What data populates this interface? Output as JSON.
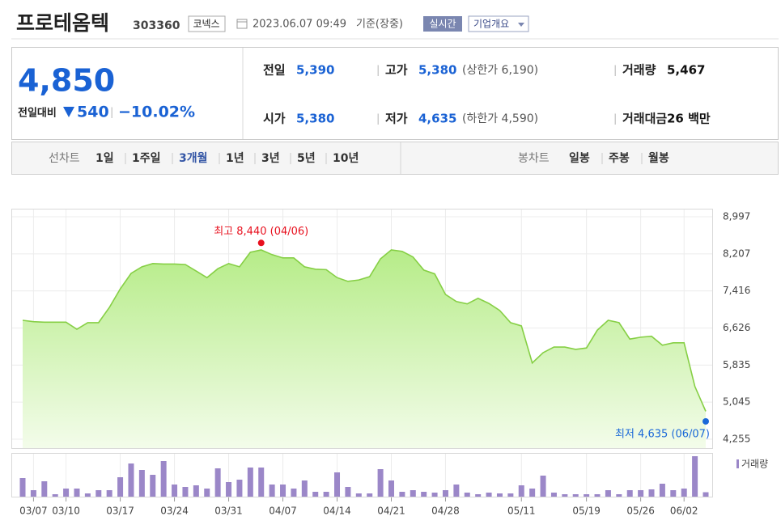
{
  "header": {
    "title": "프로테옴텍",
    "code": "303360",
    "market": "코넥스",
    "datetime": "2023.06.07 09:49",
    "basis": "기준(장중)",
    "realtime": "실시간",
    "company_info": "기업개요"
  },
  "summary": {
    "price": "4,850",
    "change_label": "전일대비",
    "change": "540",
    "change_rate": "−10.02%",
    "rows": [
      [
        {
          "label": "전일",
          "value": "5,390"
        },
        {
          "label": "고가",
          "value": "5,380",
          "note": "(상한가 6,190)"
        },
        {
          "label": "거래량",
          "value": "5,467"
        }
      ],
      [
        {
          "label": "시가",
          "value": "5,380"
        },
        {
          "label": "저가",
          "value": "4,635",
          "note": "(하한가 4,590)"
        },
        {
          "label": "거래대금",
          "value": "26 백만"
        }
      ]
    ]
  },
  "tabs": {
    "line_label": "선차트",
    "line_periods": [
      "1일",
      "1주일",
      "3개월",
      "1년",
      "3년",
      "5년",
      "10년"
    ],
    "selected": 2,
    "candle_label": "봉차트",
    "candle_periods": [
      "일봉",
      "주봉",
      "월봉"
    ]
  },
  "chart_data": {
    "type": "area",
    "categories": [
      null,
      "03/07",
      null,
      null,
      "03/10",
      null,
      null,
      null,
      null,
      "03/17",
      null,
      null,
      null,
      null,
      "03/24",
      null,
      null,
      null,
      null,
      "03/31",
      null,
      null,
      null,
      null,
      "04/07",
      null,
      null,
      null,
      null,
      "04/14",
      null,
      null,
      null,
      null,
      "04/21",
      null,
      null,
      null,
      null,
      "04/28",
      null,
      null,
      null,
      null,
      null,
      null,
      "05/11",
      null,
      null,
      null,
      null,
      null,
      "05/19",
      null,
      null,
      null,
      null,
      "05/26",
      null,
      null,
      null,
      "06/02",
      null,
      null
    ],
    "series": [
      {
        "color": "#86cf45",
        "values": [
          6790,
          6760,
          6750,
          6750,
          6750,
          6600,
          6740,
          6740,
          7065,
          7460,
          7790,
          7930,
          8000,
          7990,
          7990,
          7980,
          7840,
          7700,
          7890,
          8000,
          7930,
          8240,
          8290,
          8190,
          8120,
          8120,
          7930,
          7880,
          7870,
          7700,
          7620,
          7650,
          7720,
          8100,
          8290,
          8260,
          8140,
          7860,
          7780,
          7340,
          7190,
          7140,
          7260,
          7150,
          7000,
          6740,
          6670,
          5880,
          6100,
          6220,
          6220,
          6170,
          6200,
          6580,
          6790,
          6740,
          6390,
          6430,
          6450,
          6260,
          6310,
          6310,
          5380,
          4850
        ]
      },
      {
        "name": "거래량",
        "color": "#9b87c8",
        "axis": "y2",
        "values": [
          23000,
          8000,
          19000,
          3000,
          10000,
          10000,
          4000,
          8000,
          8000,
          24000,
          41000,
          33000,
          27000,
          44000,
          15000,
          12000,
          14000,
          10000,
          35000,
          18000,
          21000,
          36000,
          36000,
          15000,
          15000,
          10000,
          20000,
          6000,
          6000,
          30000,
          12000,
          4000,
          4000,
          34000,
          20000,
          6000,
          8000,
          6000,
          5000,
          8000,
          15000,
          5000,
          3000,
          5000,
          4000,
          4000,
          14000,
          10000,
          26000,
          5000,
          3000,
          3000,
          3000,
          3000,
          8000,
          3000,
          8000,
          8000,
          9000,
          16000,
          8000,
          10000,
          50000,
          5467
        ]
      }
    ],
    "ylim": [
      4255,
      8997
    ],
    "yticks": [
      {
        "value": 8997,
        "label": "8,997"
      },
      {
        "value": 8207,
        "label": "8,207"
      },
      {
        "value": 7416,
        "label": "7,416"
      },
      {
        "value": 6626,
        "label": "6,626"
      },
      {
        "value": 5835,
        "label": "5,835"
      },
      {
        "value": 5045,
        "label": "5,045"
      },
      {
        "value": 4255,
        "label": "4,255"
      }
    ],
    "y2lim": [
      0,
      52000
    ],
    "grid": true,
    "annotations": [
      {
        "text": "최고 8,440 (04/06)",
        "value": 8440,
        "color": "#e8101e"
      },
      {
        "text": "최저 4,635 (06/07)",
        "value": 4635,
        "color": "#1a68d8"
      }
    ]
  }
}
